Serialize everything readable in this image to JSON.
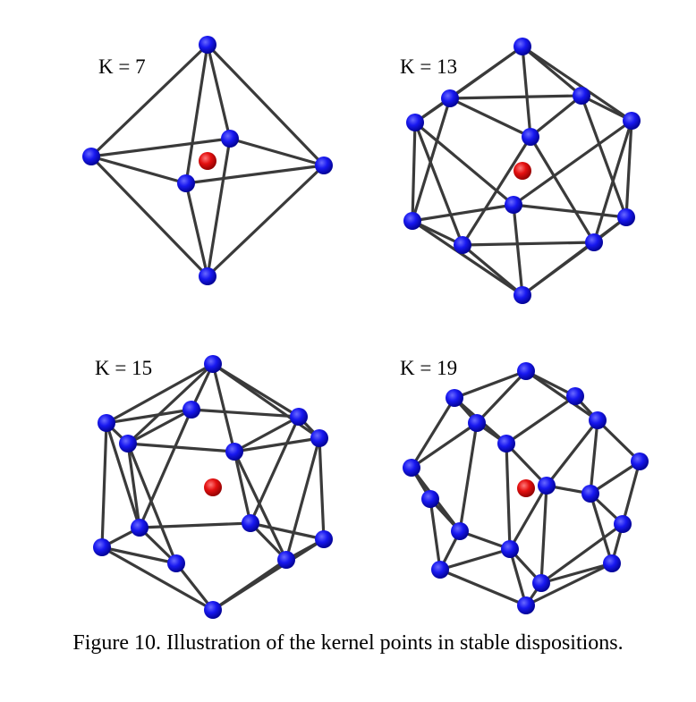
{
  "colors": {
    "kernel_point": "#1010ee",
    "center_point": "#e01010",
    "edge": "#3a3a3a"
  },
  "panels": [
    {
      "label": "K = 7"
    },
    {
      "label": "K = 13"
    },
    {
      "label": "K = 15"
    },
    {
      "label": "K = 19"
    }
  ],
  "caption": "Figure 10. Illustration of the kernel points in stable dispositions."
}
